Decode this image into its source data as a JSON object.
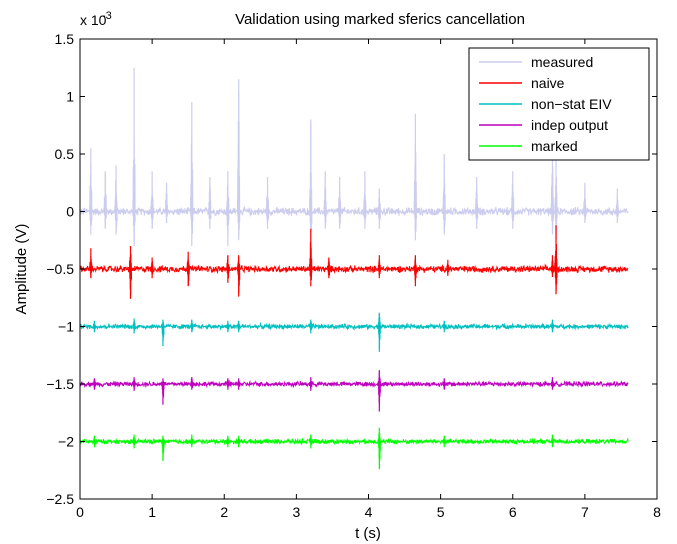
{
  "chart_data": {
    "type": "line",
    "title": "Validation using marked sferics cancellation",
    "xlabel": "t (s)",
    "ylabel": "Amplitude (V)",
    "y_exponent_label": "x 10",
    "y_exponent_power": "-3",
    "xlim": [
      0,
      8
    ],
    "ylim": [
      -2.5,
      1.5
    ],
    "x_ticks": [
      0,
      1,
      2,
      3,
      4,
      5,
      6,
      7,
      8
    ],
    "x_tick_labels": [
      "0",
      "1",
      "2",
      "3",
      "4",
      "5",
      "6",
      "7",
      "8"
    ],
    "y_ticks": [
      -2.5,
      -2,
      -1.5,
      -1,
      -0.5,
      0,
      0.5,
      1,
      1.5
    ],
    "y_tick_labels": [
      "−2.5",
      "−2",
      "−1.5",
      "−1",
      "−0.5",
      "0",
      "0.5",
      "1",
      "1.5"
    ],
    "grid": false,
    "legend_position": "top-right",
    "x_range": [
      0,
      7.6
    ],
    "series": [
      {
        "name": "measured",
        "color": "#ccccee",
        "baseline": 0,
        "noise": 0.03,
        "spikes": [
          {
            "t": 0.15,
            "up": 0.55,
            "down": -0.2
          },
          {
            "t": 0.35,
            "up": 0.35,
            "down": -0.15
          },
          {
            "t": 0.5,
            "up": 0.4,
            "down": -0.2
          },
          {
            "t": 0.75,
            "up": 1.25,
            "down": -0.3
          },
          {
            "t": 1.0,
            "up": 0.35,
            "down": -0.15
          },
          {
            "t": 1.2,
            "up": 0.25,
            "down": -0.1
          },
          {
            "t": 1.55,
            "up": 0.95,
            "down": -0.3
          },
          {
            "t": 1.8,
            "up": 0.3,
            "down": -0.15
          },
          {
            "t": 2.05,
            "up": 0.35,
            "down": -0.3
          },
          {
            "t": 2.2,
            "up": 1.15,
            "down": -0.25
          },
          {
            "t": 2.6,
            "up": 0.3,
            "down": -0.15
          },
          {
            "t": 3.2,
            "up": 0.8,
            "down": -0.25
          },
          {
            "t": 3.4,
            "up": 0.35,
            "down": -0.15
          },
          {
            "t": 3.6,
            "up": 0.3,
            "down": -0.15
          },
          {
            "t": 3.95,
            "up": 0.35,
            "down": -0.15
          },
          {
            "t": 4.15,
            "up": 0.2,
            "down": -0.15
          },
          {
            "t": 4.65,
            "up": 0.85,
            "down": -0.25
          },
          {
            "t": 5.05,
            "up": 0.5,
            "down": -0.2
          },
          {
            "t": 5.5,
            "up": 0.3,
            "down": -0.15
          },
          {
            "t": 6.0,
            "up": 0.35,
            "down": -0.15
          },
          {
            "t": 6.55,
            "up": 0.55,
            "down": -0.2
          },
          {
            "t": 6.6,
            "up": 0.45,
            "down": -0.25
          },
          {
            "t": 7.0,
            "up": 0.25,
            "down": -0.1
          },
          {
            "t": 7.45,
            "up": 0.2,
            "down": -0.1
          }
        ]
      },
      {
        "name": "naive",
        "color": "#ff0000",
        "baseline": -0.5,
        "noise": 0.025,
        "spikes": [
          {
            "t": 0.15,
            "up": 0.18,
            "down": -0.08
          },
          {
            "t": 0.7,
            "up": 0.2,
            "down": -0.26
          },
          {
            "t": 1.0,
            "up": 0.1,
            "down": -0.08
          },
          {
            "t": 1.5,
            "up": 0.15,
            "down": -0.15
          },
          {
            "t": 2.05,
            "up": 0.12,
            "down": -0.12
          },
          {
            "t": 2.2,
            "up": 0.12,
            "down": -0.24
          },
          {
            "t": 3.2,
            "up": 0.35,
            "down": -0.15
          },
          {
            "t": 3.45,
            "up": 0.1,
            "down": -0.08
          },
          {
            "t": 4.15,
            "up": 0.12,
            "down": -0.08
          },
          {
            "t": 4.65,
            "up": 0.12,
            "down": -0.15
          },
          {
            "t": 5.1,
            "up": 0.08,
            "down": -0.06
          },
          {
            "t": 6.55,
            "up": 0.12,
            "down": -0.07
          },
          {
            "t": 6.6,
            "up": 0.38,
            "down": -0.22
          }
        ]
      },
      {
        "name": "non−stat EIV",
        "color": "#00bfbf",
        "baseline": -1,
        "noise": 0.018,
        "spikes": [
          {
            "t": 0.2,
            "up": 0.05,
            "down": -0.05
          },
          {
            "t": 0.75,
            "up": 0.07,
            "down": -0.06
          },
          {
            "t": 1.15,
            "up": 0.06,
            "down": -0.17
          },
          {
            "t": 1.55,
            "up": 0.06,
            "down": -0.05
          },
          {
            "t": 2.05,
            "up": 0.05,
            "down": -0.05
          },
          {
            "t": 2.2,
            "up": 0.05,
            "down": -0.05
          },
          {
            "t": 3.2,
            "up": 0.06,
            "down": -0.06
          },
          {
            "t": 4.15,
            "up": 0.12,
            "down": -0.22
          },
          {
            "t": 5.05,
            "up": 0.05,
            "down": -0.05
          },
          {
            "t": 6.55,
            "up": 0.06,
            "down": -0.05
          }
        ]
      },
      {
        "name": "indep output",
        "color": "#bf00bf",
        "baseline": -1.5,
        "noise": 0.018,
        "spikes": [
          {
            "t": 0.2,
            "up": 0.05,
            "down": -0.05
          },
          {
            "t": 0.75,
            "up": 0.06,
            "down": -0.06
          },
          {
            "t": 1.15,
            "up": 0.05,
            "down": -0.18
          },
          {
            "t": 1.55,
            "up": 0.06,
            "down": -0.05
          },
          {
            "t": 2.05,
            "up": 0.05,
            "down": -0.05
          },
          {
            "t": 2.2,
            "up": 0.05,
            "down": -0.05
          },
          {
            "t": 3.2,
            "up": 0.06,
            "down": -0.06
          },
          {
            "t": 4.15,
            "up": 0.12,
            "down": -0.24
          },
          {
            "t": 5.05,
            "up": 0.05,
            "down": -0.05
          },
          {
            "t": 6.55,
            "up": 0.06,
            "down": -0.05
          }
        ]
      },
      {
        "name": "marked",
        "color": "#00ff00",
        "baseline": -2,
        "noise": 0.018,
        "spikes": [
          {
            "t": 0.2,
            "up": 0.05,
            "down": -0.05
          },
          {
            "t": 0.75,
            "up": 0.06,
            "down": -0.06
          },
          {
            "t": 1.15,
            "up": 0.05,
            "down": -0.17
          },
          {
            "t": 1.55,
            "up": 0.06,
            "down": -0.05
          },
          {
            "t": 2.05,
            "up": 0.05,
            "down": -0.05
          },
          {
            "t": 2.2,
            "up": 0.05,
            "down": -0.05
          },
          {
            "t": 3.2,
            "up": 0.06,
            "down": -0.06
          },
          {
            "t": 4.15,
            "up": 0.12,
            "down": -0.24
          },
          {
            "t": 5.05,
            "up": 0.05,
            "down": -0.05
          },
          {
            "t": 6.55,
            "up": 0.06,
            "down": -0.05
          }
        ]
      }
    ]
  }
}
